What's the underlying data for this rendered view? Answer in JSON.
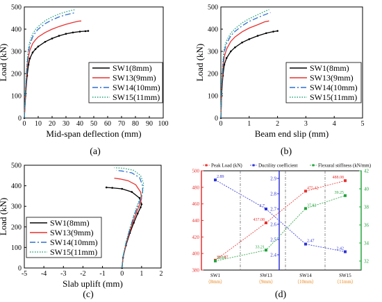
{
  "figure": {
    "panel_labels": [
      "(a)",
      "(b)",
      "(c)",
      "(d)"
    ]
  },
  "chart_data": [
    {
      "panel": "(a)",
      "type": "line",
      "xlabel": "Mid-span deflection (mm)",
      "ylabel": "Load (kN)",
      "xlim": [
        0,
        100
      ],
      "ylim": [
        0,
        500
      ],
      "xticks": [
        0,
        10,
        20,
        30,
        40,
        50,
        60,
        70,
        80,
        90,
        100
      ],
      "yticks": [
        0,
        100,
        200,
        300,
        400,
        500
      ],
      "legend": "bottom-right",
      "series": [
        {
          "name": "SW1(8mm)",
          "color": "#000000",
          "dash": "solid-marker",
          "x": [
            0,
            1,
            2,
            3,
            4,
            6,
            8,
            10,
            15,
            20,
            25,
            30,
            35,
            40,
            44,
            46
          ],
          "y": [
            0,
            110,
            190,
            240,
            268,
            295,
            310,
            322,
            343,
            358,
            370,
            379,
            385,
            389,
            391,
            392
          ]
        },
        {
          "name": "SW13(9mm)",
          "color": "#e8312f",
          "dash": "solid",
          "x": [
            0,
            1,
            2,
            3,
            4,
            6,
            8,
            10,
            15,
            20,
            25,
            30,
            35,
            39,
            41
          ],
          "y": [
            0,
            130,
            220,
            275,
            305,
            335,
            352,
            365,
            385,
            400,
            412,
            422,
            430,
            436,
            437
          ]
        },
        {
          "name": "SW14(10mm)",
          "color": "#2e6fd0",
          "dash": "dashdot",
          "x": [
            0,
            1,
            2,
            3,
            4,
            6,
            8,
            10,
            15,
            20,
            25,
            30,
            35,
            37
          ],
          "y": [
            0,
            140,
            240,
            300,
            330,
            365,
            385,
            400,
            425,
            442,
            455,
            465,
            472,
            475
          ]
        },
        {
          "name": "SW15(11mm)",
          "color": "#22a37b",
          "dash": "dotted",
          "x": [
            0,
            1,
            2,
            3,
            4,
            6,
            8,
            10,
            15,
            20,
            25,
            30,
            35,
            37
          ],
          "y": [
            0,
            150,
            255,
            315,
            345,
            378,
            398,
            412,
            438,
            455,
            468,
            478,
            486,
            488
          ]
        }
      ]
    },
    {
      "panel": "(b)",
      "type": "line",
      "xlabel": "Beam end slip (mm)",
      "ylabel": "Load (kN)",
      "xlim": [
        0,
        5
      ],
      "ylim": [
        0,
        500
      ],
      "xticks": [
        0,
        1,
        2,
        3,
        4,
        5
      ],
      "yticks": [
        0,
        100,
        200,
        300,
        400,
        500
      ],
      "legend": "bottom-right",
      "series": [
        {
          "name": "SW1(8mm)",
          "color": "#000000",
          "dash": "solid-marker",
          "x": [
            0,
            0.03,
            0.07,
            0.12,
            0.2,
            0.35,
            0.5,
            0.75,
            1.0,
            1.3,
            1.6,
            1.85,
            2.0
          ],
          "y": [
            0,
            110,
            190,
            240,
            270,
            300,
            318,
            340,
            355,
            370,
            382,
            389,
            392
          ]
        },
        {
          "name": "SW13(9mm)",
          "color": "#e8312f",
          "dash": "solid",
          "x": [
            0,
            0.03,
            0.07,
            0.12,
            0.2,
            0.35,
            0.5,
            0.75,
            1.0,
            1.3,
            1.55,
            1.7
          ],
          "y": [
            0,
            130,
            220,
            275,
            310,
            345,
            365,
            388,
            405,
            420,
            433,
            437
          ]
        },
        {
          "name": "SW14(10mm)",
          "color": "#2e6fd0",
          "dash": "dashdot",
          "x": [
            0,
            0.03,
            0.07,
            0.12,
            0.2,
            0.35,
            0.5,
            0.75,
            1.0,
            1.3,
            1.55,
            1.75
          ],
          "y": [
            0,
            140,
            240,
            300,
            335,
            370,
            390,
            415,
            435,
            452,
            465,
            475
          ]
        },
        {
          "name": "SW15(11mm)",
          "color": "#22a37b",
          "dash": "dotted",
          "x": [
            0,
            0.03,
            0.07,
            0.12,
            0.2,
            0.35,
            0.5,
            0.75,
            1.0,
            1.3,
            1.55,
            1.7
          ],
          "y": [
            0,
            150,
            255,
            315,
            348,
            382,
            402,
            428,
            447,
            465,
            480,
            488
          ]
        }
      ]
    },
    {
      "panel": "(c)",
      "type": "line",
      "xlabel": "Slab uplift (mm)",
      "ylabel": "Load (kN)",
      "xlim": [
        -5,
        2
      ],
      "ylim": [
        0,
        500
      ],
      "xticks": [
        -5,
        -4,
        -3,
        -2,
        -1,
        0,
        1,
        2
      ],
      "yticks": [
        0,
        100,
        200,
        300,
        400,
        500
      ],
      "legend": "bottom-left",
      "series": [
        {
          "name": "SW1(8mm)",
          "color": "#000000",
          "dash": "solid-marker",
          "x": [
            0,
            0.05,
            0.2,
            0.4,
            0.6,
            0.8,
            0.95,
            1.0,
            0.9,
            0.5,
            0,
            -0.5,
            -0.8
          ],
          "y": [
            0,
            50,
            110,
            170,
            220,
            265,
            295,
            310,
            340,
            370,
            385,
            390,
            392
          ]
        },
        {
          "name": "SW13(9mm)",
          "color": "#e8312f",
          "dash": "solid",
          "x": [
            0,
            0.05,
            0.2,
            0.4,
            0.6,
            0.8,
            0.95,
            1.0,
            0.95,
            0.7,
            0.3,
            -0.1,
            -0.4
          ],
          "y": [
            0,
            50,
            115,
            180,
            235,
            285,
            320,
            340,
            370,
            405,
            425,
            433,
            437
          ]
        },
        {
          "name": "SW14(10mm)",
          "color": "#2e6fd0",
          "dash": "dashdot",
          "x": [
            0,
            0.05,
            0.2,
            0.4,
            0.6,
            0.8,
            0.95,
            1.05,
            1.05,
            0.9,
            0.5,
            0,
            -0.3
          ],
          "y": [
            0,
            55,
            120,
            190,
            250,
            300,
            335,
            360,
            400,
            440,
            463,
            472,
            475
          ]
        },
        {
          "name": "SW15(11mm)",
          "color": "#22a37b",
          "dash": "dotted",
          "x": [
            0,
            0.05,
            0.2,
            0.4,
            0.6,
            0.8,
            0.95,
            1.05,
            1.1,
            0.95,
            0.6,
            0.1,
            -0.4
          ],
          "y": [
            0,
            55,
            125,
            195,
            255,
            310,
            345,
            370,
            410,
            450,
            475,
            485,
            488
          ]
        }
      ]
    },
    {
      "panel": "(d)",
      "type": "line",
      "categories": [
        "SW1",
        "SW13",
        "SW14",
        "SW15"
      ],
      "category_sublabels": [
        "（8mm）",
        "（9mm）",
        "（10mm）",
        "（11mm）"
      ],
      "legend": "top",
      "y_left": {
        "ylim": [
          380,
          500
        ],
        "ticks": [
          380,
          400,
          420,
          440,
          460,
          480,
          500
        ],
        "color": "#e8312f"
      },
      "y_mid": {
        "ylim": [
          2.3,
          2.95
        ],
        "ticks": [
          2.4,
          2.5,
          2.6,
          2.7,
          2.8,
          2.9
        ],
        "color": "#2e33d6"
      },
      "y_right": {
        "ylim": [
          31,
          42
        ],
        "ticks": [
          32,
          34,
          36,
          38,
          40,
          42
        ],
        "color": "#22a33b"
      },
      "series": [
        {
          "name": "Peak Load (kN)",
          "axis": "y_left",
          "color": "#e8312f",
          "values": [
            391.87,
            437.08,
            475.42,
            488.08
          ],
          "labels": [
            "391.87",
            "437.08",
            "475.42",
            "488.08"
          ]
        },
        {
          "name": "Ductility coefficient",
          "axis": "y_mid",
          "color": "#2e33d6",
          "values": [
            2.89,
            2.7,
            2.47,
            2.42
          ],
          "labels": [
            "2.89",
            "2.7",
            "2.47",
            "2.42"
          ]
        },
        {
          "name": "Flexural stiffness (kN/mm)",
          "axis": "y_right",
          "color": "#22a33b",
          "values": [
            32.01,
            33.21,
            37.82,
            39.25
          ],
          "labels": [
            "32.01",
            "33.21",
            "37.82",
            "39.25"
          ]
        }
      ]
    }
  ]
}
